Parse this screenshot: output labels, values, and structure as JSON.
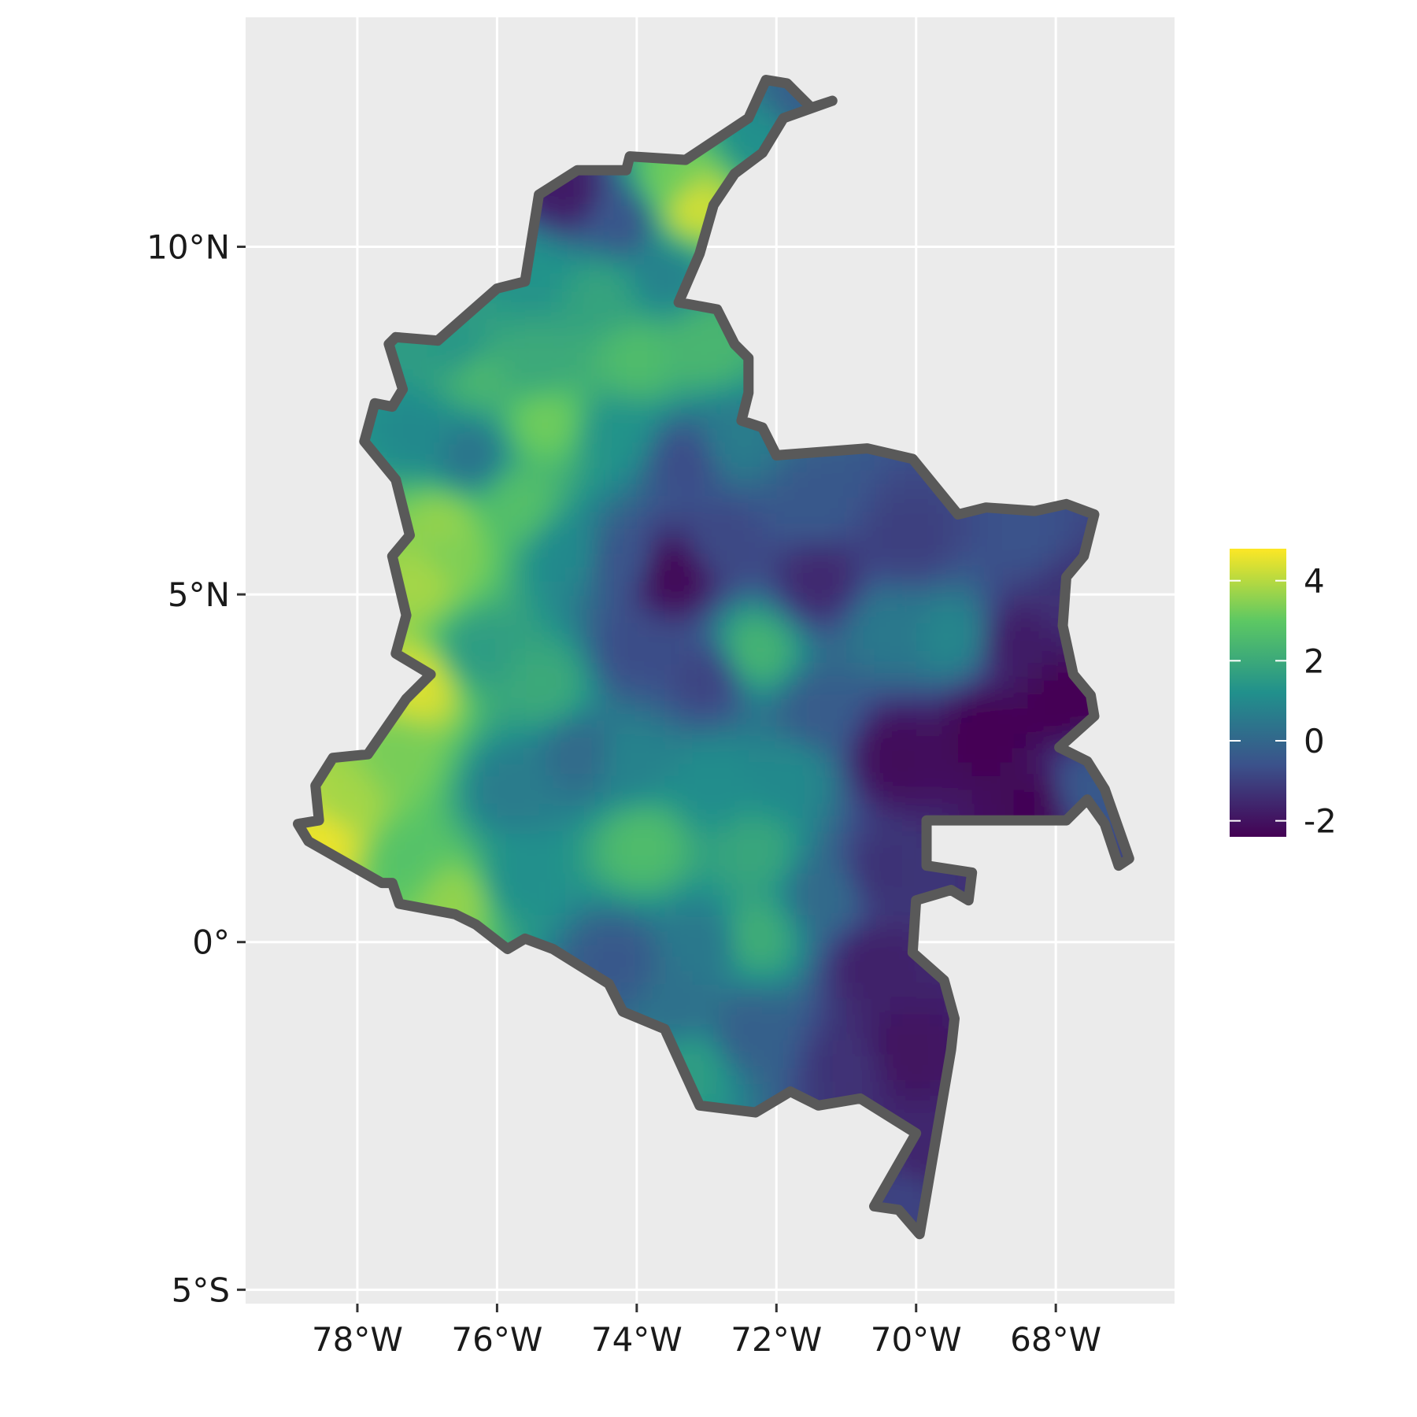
{
  "chart_data": {
    "type": "heatmap",
    "subtype": "choropleth-raster-map",
    "title": "",
    "xlabel": "",
    "ylabel": "",
    "x_axis": {
      "ticks": [
        -78,
        -76,
        -74,
        -72,
        -70,
        -68
      ],
      "tick_labels": [
        "78°W",
        "76°W",
        "74°W",
        "72°W",
        "70°W",
        "68°W"
      ],
      "range": [
        -79.6,
        -66.3
      ]
    },
    "y_axis": {
      "ticks": [
        10,
        5,
        0,
        -5
      ],
      "tick_labels": [
        "10°N",
        "5°N",
        "0°",
        "5°S"
      ],
      "range": [
        -5.2,
        13.3
      ]
    },
    "grid": true,
    "legend": {
      "placement": "right",
      "tick_values": [
        4,
        2,
        0,
        -2
      ],
      "tick_labels": [
        "4",
        "2",
        "0",
        "-2"
      ],
      "range": [
        -2.4,
        4.8
      ],
      "colormap": [
        "#440154",
        "#3b528b",
        "#21908c",
        "#5dc863",
        "#fde725"
      ]
    },
    "colors": {
      "panel_background": "#ebebeb",
      "grid": "#ffffff",
      "outline": "#595959"
    },
    "outline": [
      [
        -72.15,
        12.4
      ],
      [
        -71.85,
        12.35
      ],
      [
        -71.5,
        12.0
      ],
      [
        -71.2,
        12.1
      ],
      [
        -71.9,
        11.85
      ],
      [
        -72.2,
        11.35
      ],
      [
        -72.6,
        11.05
      ],
      [
        -72.9,
        10.6
      ],
      [
        -73.1,
        9.9
      ],
      [
        -73.4,
        9.2
      ],
      [
        -72.85,
        9.1
      ],
      [
        -72.6,
        8.6
      ],
      [
        -72.4,
        8.4
      ],
      [
        -72.4,
        7.9
      ],
      [
        -72.5,
        7.5
      ],
      [
        -72.2,
        7.4
      ],
      [
        -72.0,
        7.0
      ],
      [
        -70.7,
        7.1
      ],
      [
        -70.05,
        6.95
      ],
      [
        -69.4,
        6.15
      ],
      [
        -69.0,
        6.25
      ],
      [
        -68.3,
        6.2
      ],
      [
        -67.85,
        6.3
      ],
      [
        -67.45,
        6.15
      ],
      [
        -67.6,
        5.55
      ],
      [
        -67.85,
        5.25
      ],
      [
        -67.9,
        4.55
      ],
      [
        -67.75,
        3.85
      ],
      [
        -67.5,
        3.55
      ],
      [
        -67.45,
        3.25
      ],
      [
        -67.95,
        2.8
      ],
      [
        -67.55,
        2.6
      ],
      [
        -67.3,
        2.2
      ],
      [
        -66.95,
        1.2
      ],
      [
        -67.1,
        1.1
      ],
      [
        -67.3,
        1.7
      ],
      [
        -67.55,
        2.05
      ],
      [
        -67.85,
        1.75
      ],
      [
        -69.85,
        1.75
      ],
      [
        -69.85,
        1.1
      ],
      [
        -69.2,
        1.0
      ],
      [
        -69.25,
        0.6
      ],
      [
        -69.5,
        0.75
      ],
      [
        -70.0,
        0.6
      ],
      [
        -70.05,
        -0.15
      ],
      [
        -69.6,
        -0.55
      ],
      [
        -69.45,
        -1.1
      ],
      [
        -69.5,
        -1.55
      ],
      [
        -69.95,
        -4.2
      ],
      [
        -70.25,
        -3.85
      ],
      [
        -70.6,
        -3.8
      ],
      [
        -70.0,
        -2.75
      ],
      [
        -70.8,
        -2.25
      ],
      [
        -71.4,
        -2.35
      ],
      [
        -71.8,
        -2.15
      ],
      [
        -72.3,
        -2.45
      ],
      [
        -73.1,
        -2.35
      ],
      [
        -73.6,
        -1.25
      ],
      [
        -74.2,
        -1.0
      ],
      [
        -74.4,
        -0.6
      ],
      [
        -75.2,
        -0.1
      ],
      [
        -75.6,
        0.05
      ],
      [
        -75.85,
        -0.1
      ],
      [
        -76.3,
        0.25
      ],
      [
        -76.6,
        0.4
      ],
      [
        -77.4,
        0.55
      ],
      [
        -77.5,
        0.85
      ],
      [
        -77.65,
        0.85
      ],
      [
        -78.7,
        1.45
      ],
      [
        -78.85,
        1.7
      ],
      [
        -78.55,
        1.75
      ],
      [
        -78.6,
        2.25
      ],
      [
        -78.35,
        2.65
      ],
      [
        -77.85,
        2.7
      ],
      [
        -77.3,
        3.5
      ],
      [
        -76.95,
        3.85
      ],
      [
        -77.45,
        4.15
      ],
      [
        -77.3,
        4.7
      ],
      [
        -77.5,
        5.55
      ],
      [
        -77.25,
        5.85
      ],
      [
        -77.45,
        6.65
      ],
      [
        -77.9,
        7.2
      ],
      [
        -77.75,
        7.75
      ],
      [
        -77.5,
        7.7
      ],
      [
        -77.35,
        7.95
      ],
      [
        -77.55,
        8.6
      ],
      [
        -77.45,
        8.7
      ],
      [
        -76.85,
        8.65
      ],
      [
        -76.0,
        9.4
      ],
      [
        -75.6,
        9.5
      ],
      [
        -75.4,
        10.75
      ],
      [
        -74.85,
        11.1
      ],
      [
        -74.15,
        11.1
      ],
      [
        -74.1,
        11.3
      ],
      [
        -73.3,
        11.25
      ],
      [
        -72.4,
        11.85
      ]
    ],
    "field_samples": [
      {
        "lon": -75.0,
        "lat": 10.8,
        "value": -1.8
      },
      {
        "lon": -74.2,
        "lat": 10.4,
        "value": -0.5
      },
      {
        "lon": -73.5,
        "lat": 10.9,
        "value": 3.2
      },
      {
        "lon": -73.2,
        "lat": 10.6,
        "value": 4.3
      },
      {
        "lon": -72.2,
        "lat": 11.6,
        "value": 1.2
      },
      {
        "lon": -71.7,
        "lat": 12.1,
        "value": -0.2
      },
      {
        "lon": -75.5,
        "lat": 9.6,
        "value": 1.3
      },
      {
        "lon": -74.5,
        "lat": 9.3,
        "value": 1.8
      },
      {
        "lon": -73.6,
        "lat": 9.6,
        "value": 0.8
      },
      {
        "lon": -76.5,
        "lat": 8.5,
        "value": 1.4
      },
      {
        "lon": -76.3,
        "lat": 8.2,
        "value": 2.4
      },
      {
        "lon": -75.4,
        "lat": 8.3,
        "value": 2.0
      },
      {
        "lon": -74.0,
        "lat": 8.4,
        "value": 2.6
      },
      {
        "lon": -73.0,
        "lat": 8.6,
        "value": 2.4
      },
      {
        "lon": -75.3,
        "lat": 7.5,
        "value": 3.2
      },
      {
        "lon": -77.1,
        "lat": 7.3,
        "value": 1.0
      },
      {
        "lon": -76.4,
        "lat": 7.0,
        "value": 0.4
      },
      {
        "lon": -74.3,
        "lat": 7.3,
        "value": 1.3
      },
      {
        "lon": -73.3,
        "lat": 6.9,
        "value": -0.7
      },
      {
        "lon": -72.6,
        "lat": 7.2,
        "value": 0.6
      },
      {
        "lon": -76.8,
        "lat": 6.0,
        "value": 3.6
      },
      {
        "lon": -77.1,
        "lat": 5.2,
        "value": 3.8
      },
      {
        "lon": -76.7,
        "lat": 5.6,
        "value": 3.4
      },
      {
        "lon": -75.7,
        "lat": 6.3,
        "value": 2.7
      },
      {
        "lon": -75.0,
        "lat": 5.6,
        "value": 1.0
      },
      {
        "lon": -74.2,
        "lat": 5.5,
        "value": -0.5
      },
      {
        "lon": -73.5,
        "lat": 5.3,
        "value": -2.3
      },
      {
        "lon": -72.8,
        "lat": 5.8,
        "value": -0.8
      },
      {
        "lon": -71.5,
        "lat": 6.3,
        "value": -0.4
      },
      {
        "lon": -71.4,
        "lat": 5.2,
        "value": -1.5
      },
      {
        "lon": -70.1,
        "lat": 5.8,
        "value": -1.0
      },
      {
        "lon": -68.4,
        "lat": 5.8,
        "value": -0.6
      },
      {
        "lon": -69.5,
        "lat": 4.4,
        "value": 0.9
      },
      {
        "lon": -70.4,
        "lat": 4.5,
        "value": 0.5
      },
      {
        "lon": -68.5,
        "lat": 4.3,
        "value": -1.8
      },
      {
        "lon": -67.9,
        "lat": 3.5,
        "value": -2.4
      },
      {
        "lon": -69.0,
        "lat": 3.0,
        "value": -2.4
      },
      {
        "lon": -70.3,
        "lat": 2.7,
        "value": -2.2
      },
      {
        "lon": -71.4,
        "lat": 3.3,
        "value": -0.3
      },
      {
        "lon": -72.3,
        "lat": 4.2,
        "value": 2.3
      },
      {
        "lon": -73.0,
        "lat": 3.8,
        "value": -0.9
      },
      {
        "lon": -74.0,
        "lat": 4.2,
        "value": -0.7
      },
      {
        "lon": -75.3,
        "lat": 3.7,
        "value": 2.0
      },
      {
        "lon": -76.3,
        "lat": 4.2,
        "value": 1.6
      },
      {
        "lon": -77.1,
        "lat": 3.7,
        "value": 4.4
      },
      {
        "lon": -77.4,
        "lat": 2.7,
        "value": 3.3
      },
      {
        "lon": -78.2,
        "lat": 2.0,
        "value": 3.8
      },
      {
        "lon": -78.5,
        "lat": 1.5,
        "value": 4.6
      },
      {
        "lon": -77.3,
        "lat": 1.2,
        "value": 2.8
      },
      {
        "lon": -76.6,
        "lat": 0.6,
        "value": 3.6
      },
      {
        "lon": -75.7,
        "lat": 0.9,
        "value": 1.2
      },
      {
        "lon": -75.8,
        "lat": 2.2,
        "value": 0.6
      },
      {
        "lon": -74.8,
        "lat": 2.7,
        "value": 0.1
      },
      {
        "lon": -73.9,
        "lat": 1.4,
        "value": 2.6
      },
      {
        "lon": -74.1,
        "lat": 2.6,
        "value": 0.8
      },
      {
        "lon": -72.3,
        "lat": 1.3,
        "value": 1.9
      },
      {
        "lon": -72.9,
        "lat": 2.3,
        "value": 1.1
      },
      {
        "lon": -71.8,
        "lat": 2.4,
        "value": 1.0
      },
      {
        "lon": -72.3,
        "lat": 0.1,
        "value": 2.1
      },
      {
        "lon": -71.3,
        "lat": 0.7,
        "value": 0.1
      },
      {
        "lon": -73.0,
        "lat": 0.0,
        "value": 0.5
      },
      {
        "lon": -74.3,
        "lat": -0.3,
        "value": -0.4
      },
      {
        "lon": -73.4,
        "lat": -0.9,
        "value": 0.3
      },
      {
        "lon": -72.4,
        "lat": -1.3,
        "value": -0.2
      },
      {
        "lon": -73.2,
        "lat": -1.8,
        "value": 1.6
      },
      {
        "lon": -70.5,
        "lat": 1.0,
        "value": -1.3
      },
      {
        "lon": -70.6,
        "lat": -0.3,
        "value": -1.7
      },
      {
        "lon": -70.2,
        "lat": -1.6,
        "value": -2.0
      },
      {
        "lon": -70.9,
        "lat": -1.8,
        "value": -1.3
      },
      {
        "lon": -69.9,
        "lat": -3.2,
        "value": -1.6
      },
      {
        "lon": -70.1,
        "lat": -3.6,
        "value": -0.9
      },
      {
        "lon": -68.3,
        "lat": 2.0,
        "value": -2.3
      },
      {
        "lon": -67.6,
        "lat": 2.2,
        "value": -0.4
      },
      {
        "lon": -67.8,
        "lat": 5.0,
        "value": -1.3
      }
    ]
  }
}
